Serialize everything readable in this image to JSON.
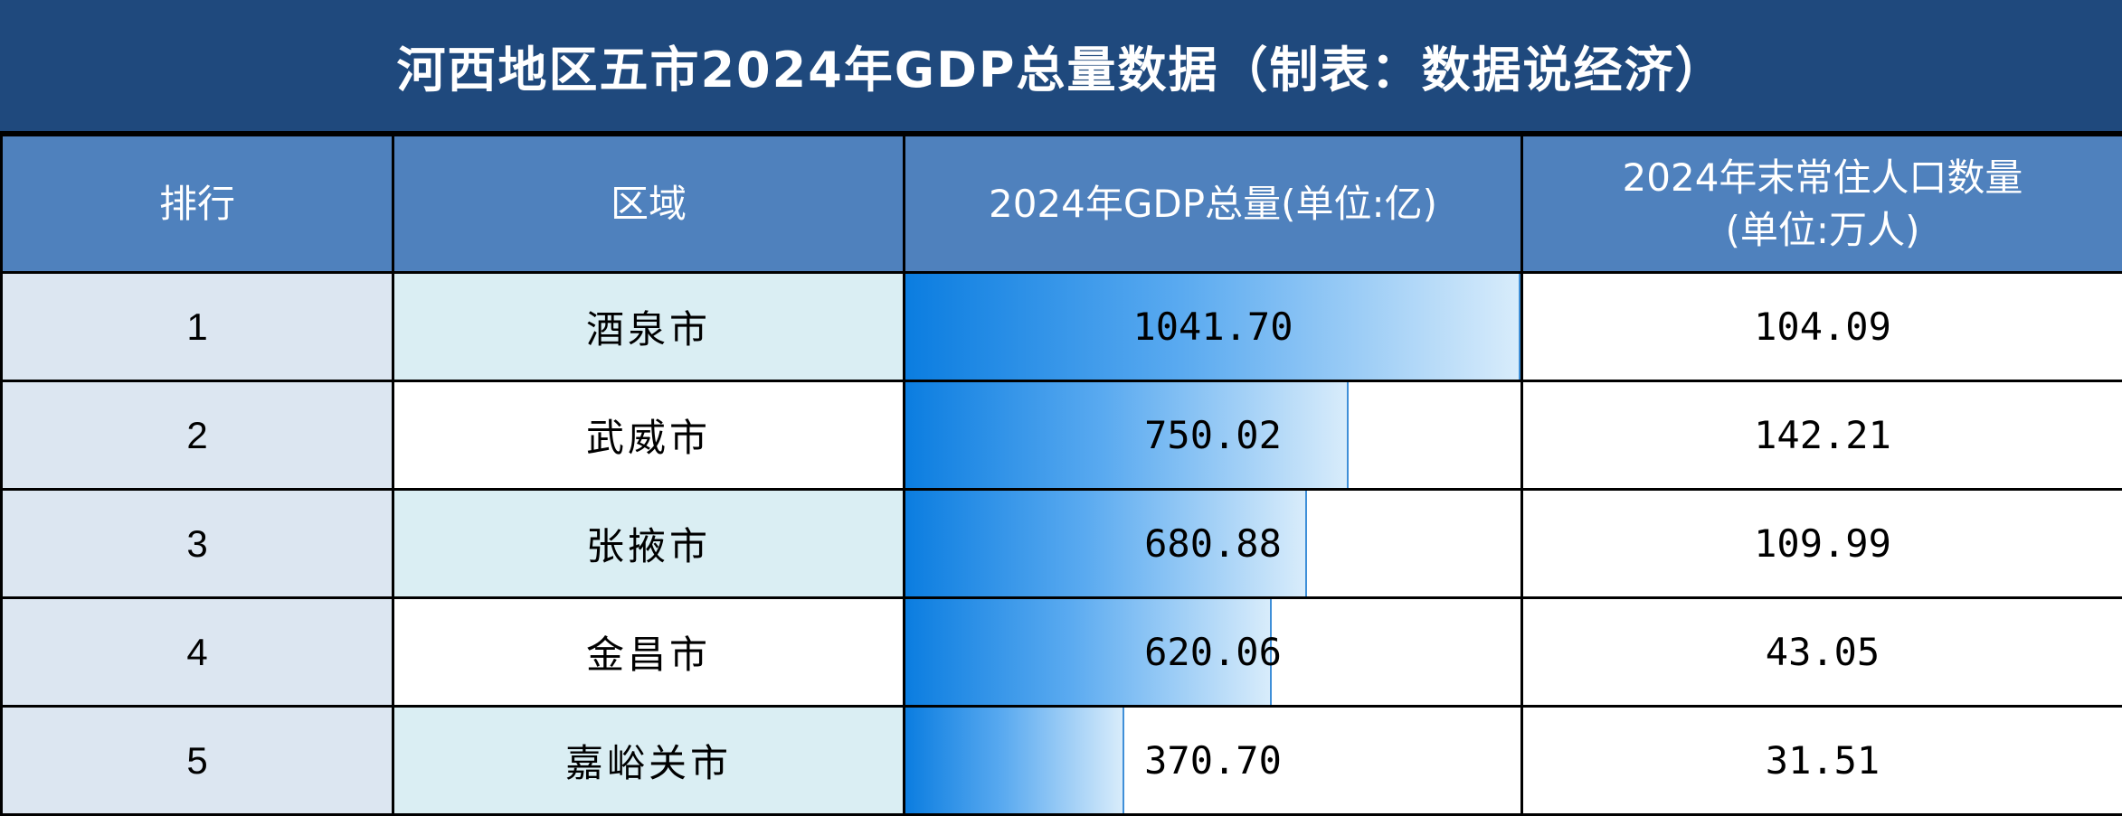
{
  "title": "河西地区五市2024年GDP总量数据（制表：数据说经济）",
  "headers": {
    "rank": "排行",
    "region": "区域",
    "gdp": "2024年GDP总量(单位:亿)",
    "population_line1": "2024年末常住人口数量",
    "population_line2": "(单位:万人)"
  },
  "colors": {
    "title_bg": "#1f497d",
    "header_bg": "#4f81bd",
    "bar_start": "#0b7de0",
    "bar_end": "#d8ecfb"
  },
  "chart_data": {
    "type": "table",
    "title": "河西地区五市2024年GDP总量数据（制表：数据说经济）",
    "columns": [
      "排行",
      "区域",
      "2024年GDP总量(单位:亿)",
      "2024年末常住人口数量(单位:万人)"
    ],
    "rows": [
      {
        "rank": "1",
        "region": "酒泉市",
        "gdp": "1041.70",
        "population": "104.09"
      },
      {
        "rank": "2",
        "region": "武威市",
        "gdp": "750.02",
        "population": "142.21"
      },
      {
        "rank": "3",
        "region": "张掖市",
        "gdp": "680.88",
        "population": "109.99"
      },
      {
        "rank": "4",
        "region": "金昌市",
        "gdp": "620.06",
        "population": "43.05"
      },
      {
        "rank": "5",
        "region": "嘉峪关市",
        "gdp": "370.70",
        "population": "31.51"
      }
    ],
    "gdp_bar_max": 1041.7
  }
}
